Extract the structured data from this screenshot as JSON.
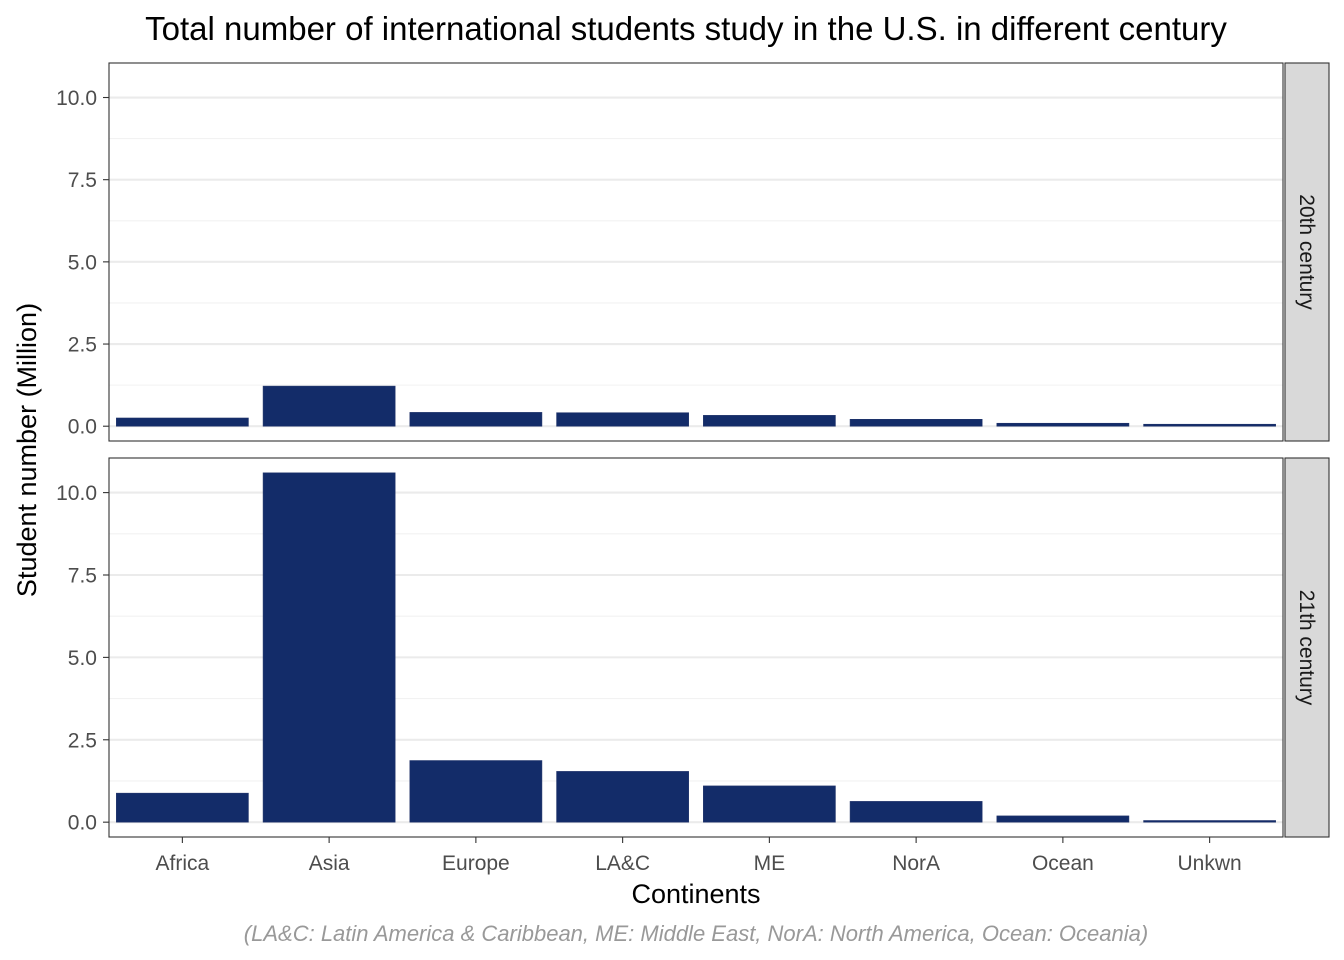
{
  "chart_data": {
    "type": "bar",
    "title": "Total number of international students study in the U.S. in different century",
    "xlabel": "Continents",
    "ylabel": "Student number (Million)",
    "caption": "(LA&C: Latin America & Caribbean, ME: Middle East, NorA: North America, Ocean: Oceania)",
    "categories": [
      "Africa",
      "Asia",
      "Europe",
      "LA&C",
      "ME",
      "NorA",
      "Ocean",
      "Unkwn"
    ],
    "ylim": [
      -0.45,
      11.05
    ],
    "yticks": [
      0.0,
      2.5,
      5.0,
      7.5,
      10.0
    ],
    "ytick_labels": [
      "0.0",
      "2.5",
      "5.0",
      "7.5",
      "10.0"
    ],
    "grid": true,
    "bar_color": "#132C69",
    "strip_color": "#D9D9D9",
    "facets": [
      {
        "label": "20th century",
        "values": [
          0.25,
          1.22,
          0.42,
          0.41,
          0.33,
          0.21,
          0.09,
          0.06
        ]
      },
      {
        "label": "21th century",
        "values": [
          0.88,
          10.6,
          1.87,
          1.54,
          1.1,
          0.63,
          0.19,
          0.05
        ]
      }
    ]
  }
}
